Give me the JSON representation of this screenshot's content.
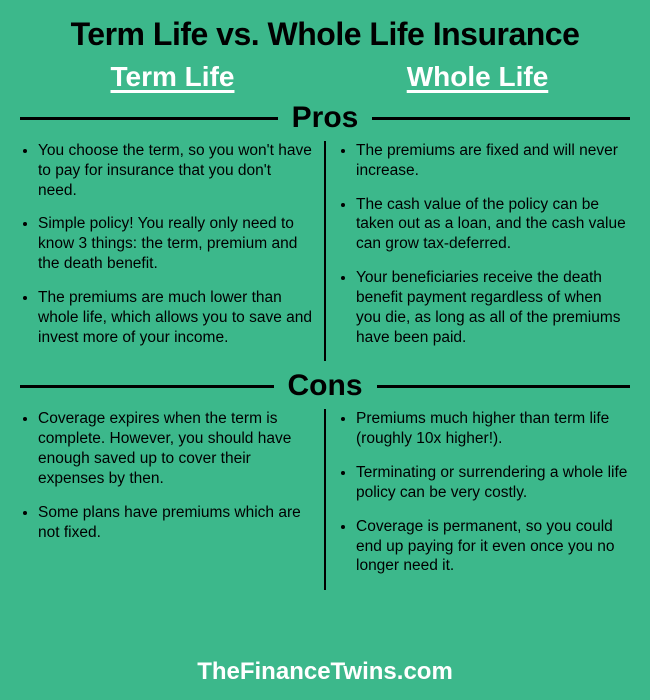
{
  "background_color": "#3cb88b",
  "text_color_dark": "#000000",
  "text_color_light": "#ffffff",
  "main_title": "Term Life vs. Whole Life Insurance",
  "main_title_fontsize": 32,
  "column_headers": {
    "left": "Term Life",
    "right": "Whole Life",
    "fontsize": 28,
    "color": "#ffffff"
  },
  "sections": {
    "pros": {
      "label": "Pros",
      "label_fontsize": 30,
      "left": [
        "You choose the term, so you won't have to pay for insurance that you don't need.",
        "Simple policy! You really only need to know 3 things: the term, premium and the death benefit.",
        "The premiums are much lower than whole life, which allows you to save and invest more of your income."
      ],
      "right": [
        "The premiums are fixed and will never increase.",
        "The cash value of the policy can be taken out as a loan, and the cash value can grow tax-deferred.",
        "Your beneficiaries receive the death benefit payment regardless of when you die, as long as all of the premiums have been paid."
      ]
    },
    "cons": {
      "label": "Cons",
      "label_fontsize": 30,
      "left": [
        "Coverage expires when the term is complete. However, you should have enough saved up to cover their expenses by then.",
        "Some plans have premiums which are not fixed."
      ],
      "right": [
        "Premiums much higher than term life (roughly 10x higher!).",
        "Terminating or surrendering a whole life policy can be very costly.",
        "Coverage is permanent, so you could end up paying for it even once you no longer need it."
      ]
    }
  },
  "footer": "TheFinanceTwins.com",
  "footer_fontsize": 24,
  "divider_color": "#000000",
  "body_fontsize": 15.5
}
